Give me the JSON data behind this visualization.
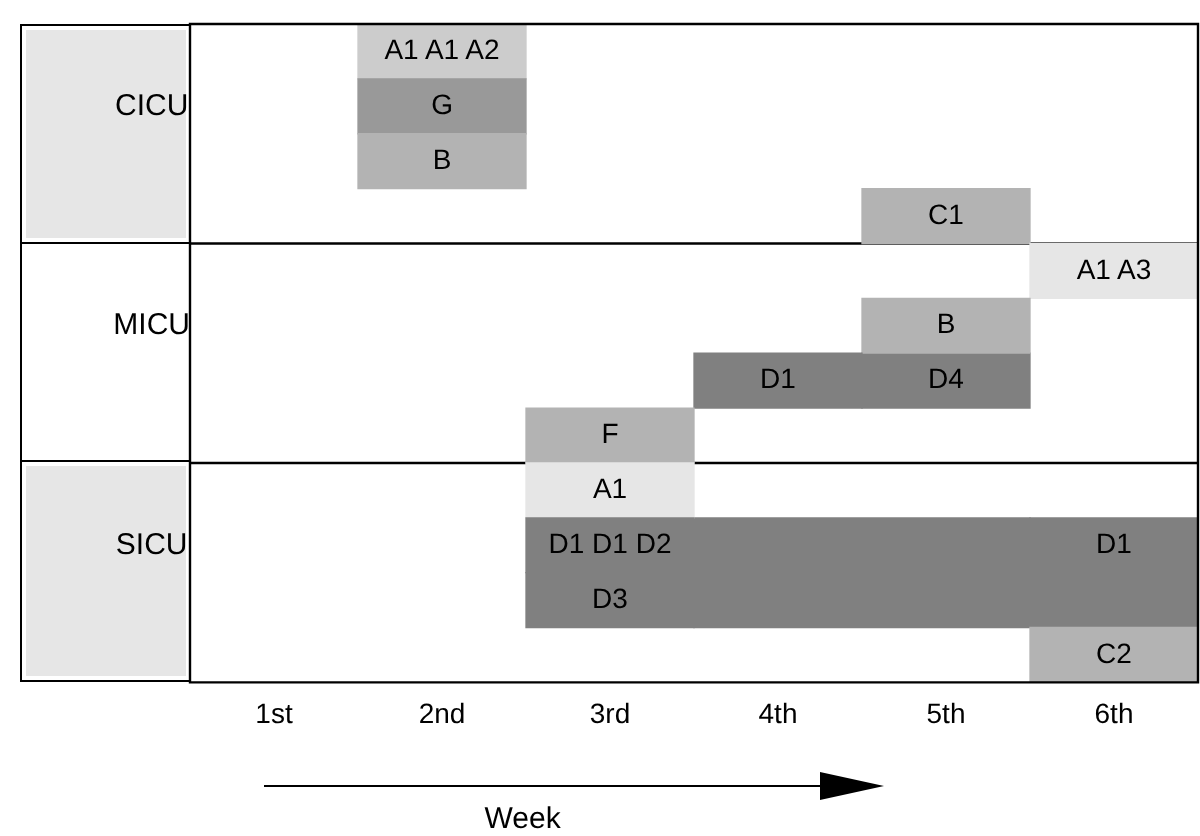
{
  "chart_data": {
    "type": "bar",
    "orientation": "horizontal",
    "xlabel": "Week",
    "categories": [
      null,
      "CICU",
      null,
      null,
      null,
      "MICU",
      null,
      null,
      null,
      "SICU",
      null,
      null
    ],
    "xlim": [
      0,
      6
    ],
    "xticks": [
      {
        "value": 0.5,
        "label": "1st"
      },
      {
        "value": 1.5,
        "label": "2nd"
      },
      {
        "value": 2.5,
        "label": "3rd"
      },
      {
        "value": 3.5,
        "label": "4th"
      },
      {
        "value": 4.5,
        "label": "5th"
      },
      {
        "value": 5.5,
        "label": "6th"
      }
    ],
    "legend": false,
    "series": [
      {
        "values": [
          1,
          1,
          1,
          1,
          1,
          1,
          1,
          1,
          1,
          1,
          1,
          1
        ],
        "base": [
          1,
          1,
          1,
          4,
          5,
          4,
          3,
          2,
          2,
          2,
          2,
          5
        ],
        "colors": [
          "#cccccc",
          "#999999",
          "#b3b3b3",
          "#b3b3b3",
          "#e6e6e6",
          "#b3b3b3",
          "#808080",
          "#b3b3b3",
          "#e6e6e6",
          "#808080",
          "#808080",
          "#b3b3b3"
        ],
        "value_labels": [
          "A1 A1 A2",
          "G",
          "B",
          "C1",
          "A1 A3",
          "B",
          "D1",
          "F",
          "A1",
          "D1 D1 D2",
          "D3",
          "C2"
        ]
      },
      {
        "values": [
          null,
          null,
          null,
          null,
          null,
          null,
          1,
          null,
          null,
          2,
          3,
          null
        ],
        "base": [
          null,
          null,
          null,
          null,
          null,
          null,
          4,
          null,
          null,
          3,
          3,
          null
        ],
        "colors": [
          null,
          null,
          null,
          null,
          null,
          null,
          "#808080",
          null,
          null,
          "#808080",
          "#808080",
          null
        ],
        "value_labels": [
          null,
          null,
          null,
          null,
          null,
          null,
          "D4",
          null,
          null,
          null,
          null,
          null
        ]
      },
      {
        "values": [
          null,
          null,
          null,
          null,
          null,
          null,
          null,
          null,
          null,
          1,
          null,
          null
        ],
        "base": [
          null,
          null,
          null,
          null,
          null,
          null,
          null,
          null,
          null,
          5,
          null,
          null
        ],
        "colors": [
          null,
          null,
          null,
          null,
          null,
          null,
          null,
          null,
          null,
          "#808080",
          null,
          null
        ],
        "value_labels": [
          null,
          null,
          null,
          null,
          null,
          null,
          null,
          null,
          null,
          "D1",
          null,
          null
        ]
      }
    ]
  }
}
